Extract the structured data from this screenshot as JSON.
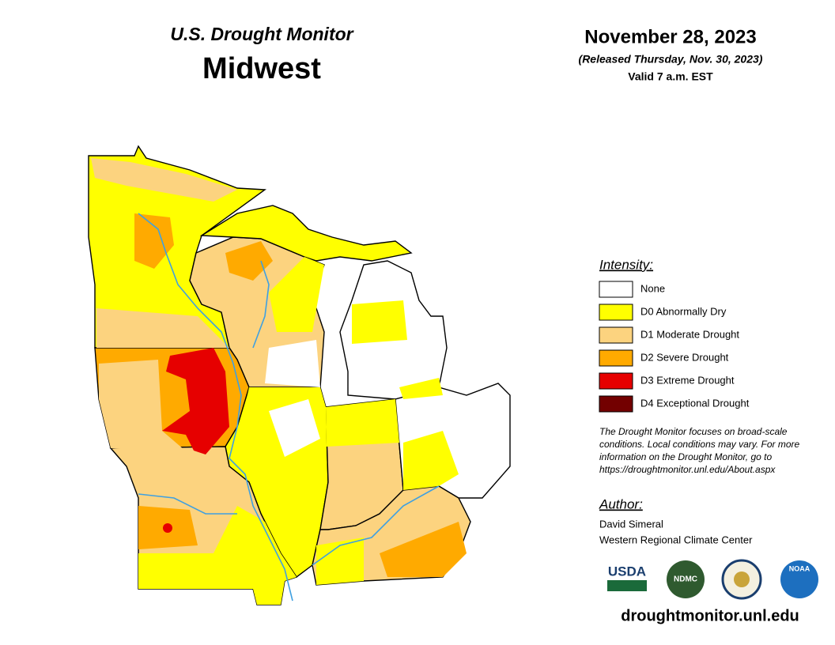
{
  "header": {
    "series": "U.S. Drought Monitor",
    "region": "Midwest",
    "date": "November 28, 2023",
    "released": "(Released Thursday, Nov. 30, 2023)",
    "valid": "Valid 7 a.m. EST"
  },
  "legend": {
    "title": "Intensity:",
    "items": [
      {
        "label": "None",
        "color": "#ffffff"
      },
      {
        "label": "D0 Abnormally Dry",
        "color": "#ffff00"
      },
      {
        "label": "D1 Moderate Drought",
        "color": "#fcd37f"
      },
      {
        "label": "D2 Severe Drought",
        "color": "#ffaa00"
      },
      {
        "label": "D3 Extreme Drought",
        "color": "#e60000"
      },
      {
        "label": "D4 Exceptional Drought",
        "color": "#730000"
      }
    ]
  },
  "note": "The Drought Monitor focuses on broad-scale conditions. Local conditions may vary. For more information on the Drought Monitor, go to https://droughtmonitor.unl.edu/About.aspx",
  "author": {
    "title": "Author:",
    "name": "David Simeral",
    "org": "Western Regional Climate Center"
  },
  "logos": [
    "USDA",
    "NDMC",
    "NOAA"
  ],
  "url": "droughtmonitor.unl.edu"
}
